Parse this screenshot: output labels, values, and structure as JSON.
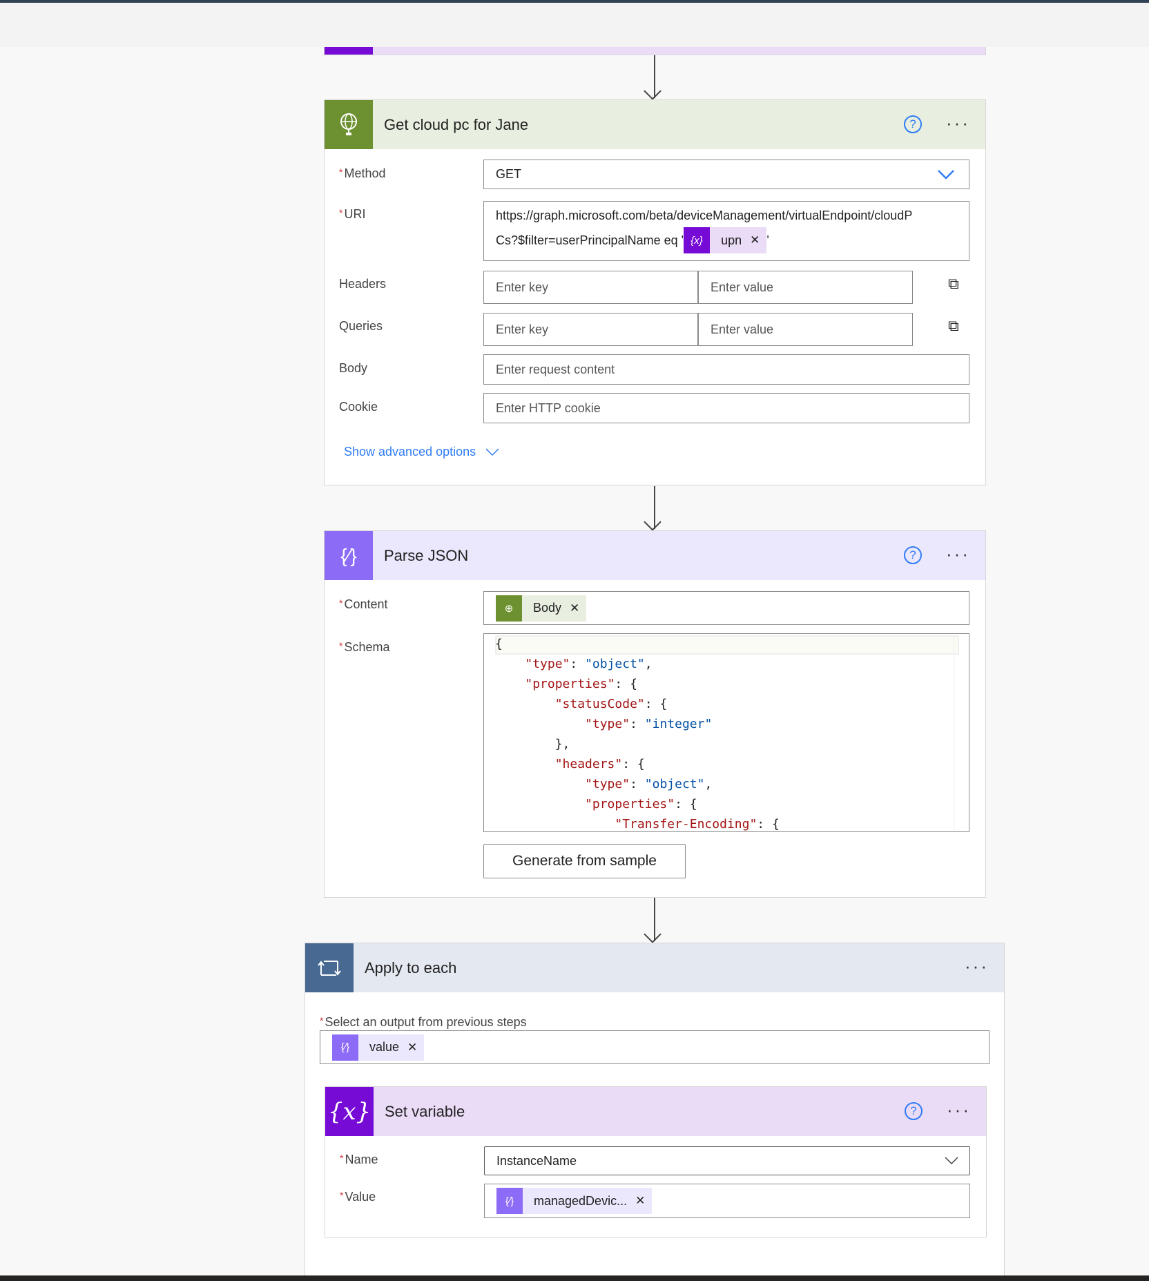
{
  "card_get": {
    "title": "Get cloud pc for Jane",
    "icon": "globe-icon",
    "method_label": "Method",
    "method_value": "GET",
    "uri_label": "URI",
    "uri_line1": "https://graph.microsoft.com/beta/deviceManagement/virtualEndpoint/cloudP",
    "uri_line2": "Cs?$filter=userPrincipalName eq '",
    "uri_token": "upn",
    "uri_after": "'",
    "headers_label": "Headers",
    "queries_label": "Queries",
    "key_placeholder": "Enter key",
    "value_placeholder": "Enter value",
    "body_label": "Body",
    "body_placeholder": "Enter request content",
    "cookie_label": "Cookie",
    "cookie_placeholder": "Enter HTTP cookie",
    "advanced": "Show advanced options"
  },
  "card_parse": {
    "title": "Parse JSON",
    "content_label": "Content",
    "content_token": "Body",
    "schema_label": "Schema",
    "schema_lines": [
      "{",
      "    \"type\": \"object\",",
      "    \"properties\": {",
      "        \"statusCode\": {",
      "            \"type\": \"integer\"",
      "        },",
      "        \"headers\": {",
      "            \"type\": \"object\",",
      "            \"properties\": {",
      "                \"Transfer-Encoding\": {"
    ],
    "generate_button": "Generate from sample"
  },
  "card_apply": {
    "title": "Apply to each",
    "select_label": "Select an output from previous steps",
    "select_token": "value"
  },
  "card_setvar": {
    "title": "Set variable",
    "name_label": "Name",
    "name_value": "InstanceName",
    "value_label": "Value",
    "value_token": "managedDevic..."
  },
  "colors": {
    "http_green": "#6d9130",
    "http_header": "#e8efe0",
    "parse_purple": "#8c6cf6",
    "parse_header": "#ebe7fc",
    "var_purple": "#770bd6",
    "var_header": "#eadbf6",
    "loop_blue": "#486991",
    "loop_header": "#e4e8f0",
    "link_blue": "#2f7cf6"
  }
}
